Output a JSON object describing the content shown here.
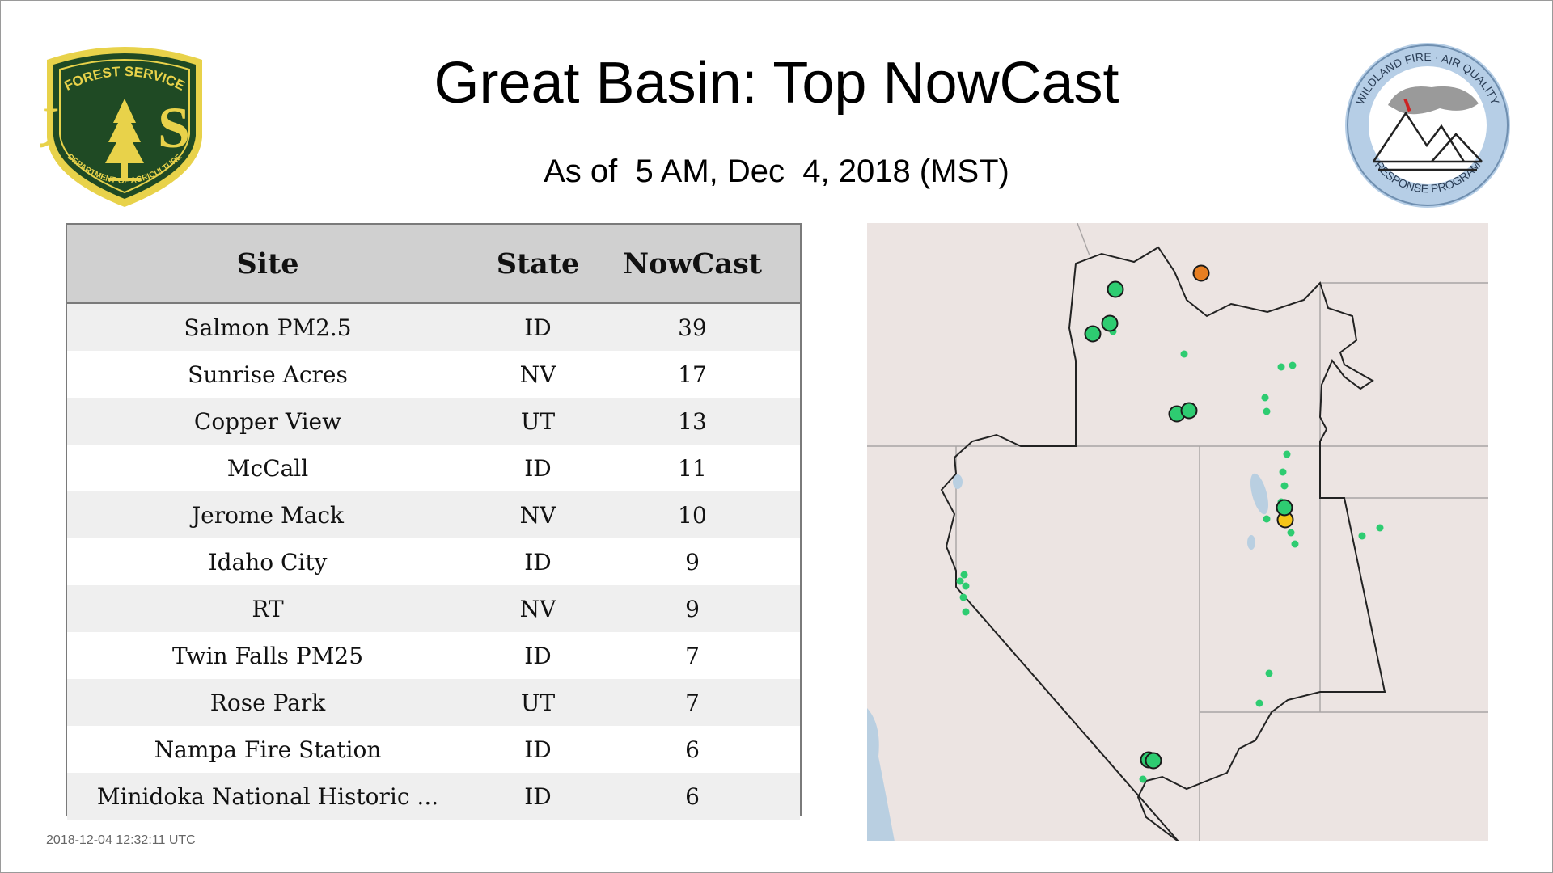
{
  "header": {
    "title": "Great Basin: Top NowCast",
    "subtitle": "As of  5 AM, Dec  4, 2018 (MST)"
  },
  "logos": {
    "forest_service": {
      "top_text": "FOREST SERVICE",
      "letters": "U S",
      "bottom_text": "DEPARTMENT OF AGRICULTURE"
    },
    "wildland_fire": {
      "top_text": "WILDLAND FIRE · AIR QUALITY",
      "bottom_text": "RESPONSE PROGRAM"
    }
  },
  "table": {
    "headers": {
      "site": "Site",
      "state": "State",
      "nowcast": "NowCast"
    },
    "rows": [
      {
        "site": "Salmon PM2.5",
        "state": "ID",
        "nowcast": "39"
      },
      {
        "site": "Sunrise Acres",
        "state": "NV",
        "nowcast": "17"
      },
      {
        "site": "Copper View",
        "state": "UT",
        "nowcast": "13"
      },
      {
        "site": "McCall",
        "state": "ID",
        "nowcast": "11"
      },
      {
        "site": "Jerome Mack",
        "state": "NV",
        "nowcast": "10"
      },
      {
        "site": "Idaho City",
        "state": "ID",
        "nowcast": "9"
      },
      {
        "site": "RT",
        "state": "NV",
        "nowcast": "9"
      },
      {
        "site": "Twin Falls PM25",
        "state": "ID",
        "nowcast": "7"
      },
      {
        "site": "Rose Park",
        "state": "UT",
        "nowcast": "7"
      },
      {
        "site": "Nampa Fire Station",
        "state": "ID",
        "nowcast": "6"
      },
      {
        "site": "Minidoka National Historic ...",
        "state": "ID",
        "nowcast": "6"
      }
    ]
  },
  "footer": {
    "timestamp": "2018-12-04 12:32:11 UTC"
  },
  "colors": {
    "map_land": "#ece4e2",
    "map_water": "#b9cfe1",
    "aqi_good": "#2ecc71",
    "aqi_moderate": "#f5c518",
    "aqi_usg": "#e67e22"
  }
}
